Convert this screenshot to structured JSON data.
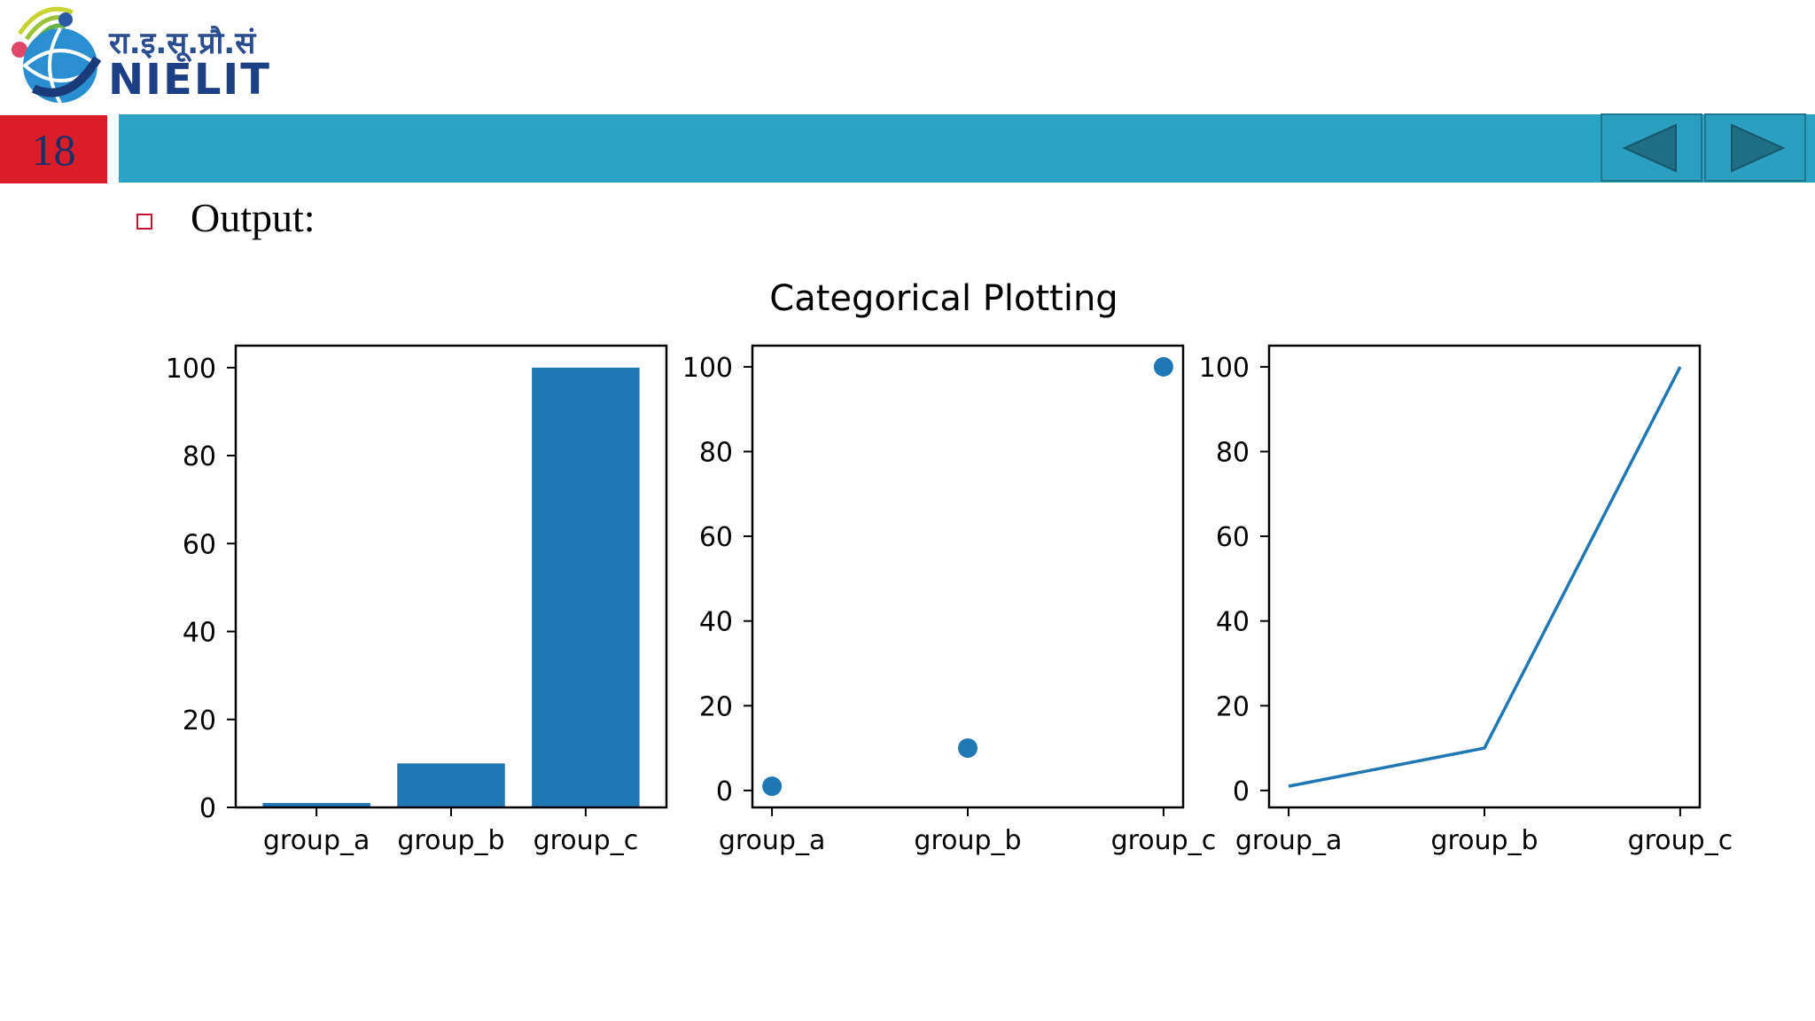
{
  "header": {
    "logo_devanagari": "रा.इ.सू.प्रौ.सं",
    "logo_name": "NIELIT",
    "slide_number": "18",
    "nav": {
      "prev": "previous-arrow-icon",
      "next": "next-arrow-icon"
    }
  },
  "content": {
    "bullet_text": "Output:"
  },
  "colors": {
    "series": "#1f77b4",
    "topbar": "#2ba3c4",
    "slide_number_bg": "#db1d2a"
  },
  "chart_data": [
    {
      "type": "bar",
      "title": "Categorical Plotting",
      "categories": [
        "group_a",
        "group_b",
        "group_c"
      ],
      "values": [
        1,
        10,
        100
      ],
      "ylim": [
        0,
        105
      ],
      "yticks": [
        0,
        20,
        40,
        60,
        80,
        100
      ],
      "xlabel": "",
      "ylabel": "",
      "grid": false
    },
    {
      "type": "scatter",
      "categories": [
        "group_a",
        "group_b",
        "group_c"
      ],
      "values": [
        1,
        10,
        100
      ],
      "ylim": [
        -4,
        105
      ],
      "yticks": [
        0,
        20,
        40,
        60,
        80,
        100
      ],
      "xlabel": "",
      "ylabel": "",
      "grid": false
    },
    {
      "type": "line",
      "categories": [
        "group_a",
        "group_b",
        "group_c"
      ],
      "values": [
        1,
        10,
        100
      ],
      "ylim": [
        -4,
        105
      ],
      "yticks": [
        0,
        20,
        40,
        60,
        80,
        100
      ],
      "xlabel": "",
      "ylabel": "",
      "grid": false
    }
  ]
}
